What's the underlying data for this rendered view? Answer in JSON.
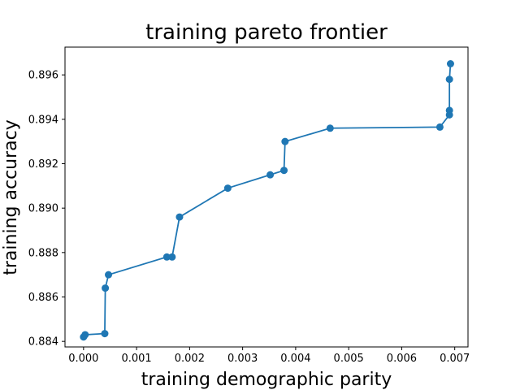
{
  "chart_data": {
    "type": "line",
    "title": "training pareto frontier",
    "xlabel": "training demographic parity",
    "ylabel": "training accuracy",
    "xlim": [
      -0.00035,
      0.00725
    ],
    "ylim": [
      0.88375,
      0.89725
    ],
    "xticks": [
      0.0,
      0.001,
      0.002,
      0.003,
      0.004,
      0.005,
      0.006,
      0.007
    ],
    "xtick_labels": [
      "0.000",
      "0.001",
      "0.002",
      "0.003",
      "0.004",
      "0.005",
      "0.006",
      "0.007"
    ],
    "yticks": [
      0.884,
      0.886,
      0.888,
      0.89,
      0.892,
      0.894,
      0.896
    ],
    "ytick_labels": [
      "0.884",
      "0.886",
      "0.888",
      "0.890",
      "0.892",
      "0.894",
      "0.896"
    ],
    "grid": false,
    "series": [
      {
        "color": "#1f77b4",
        "marker": "circle",
        "x": [
          0.0,
          3e-05,
          0.0004,
          0.00041,
          0.00047,
          0.00157,
          0.00167,
          0.00181,
          0.00272,
          0.00352,
          0.00378,
          0.0038,
          0.00465,
          0.00672,
          0.0069,
          0.0069,
          0.0069,
          0.00692
        ],
        "y": [
          0.8842,
          0.8843,
          0.88435,
          0.8864,
          0.887,
          0.8878,
          0.8878,
          0.8896,
          0.8909,
          0.8915,
          0.8917,
          0.893,
          0.8936,
          0.89365,
          0.8942,
          0.8944,
          0.8958,
          0.8965
        ]
      }
    ]
  }
}
